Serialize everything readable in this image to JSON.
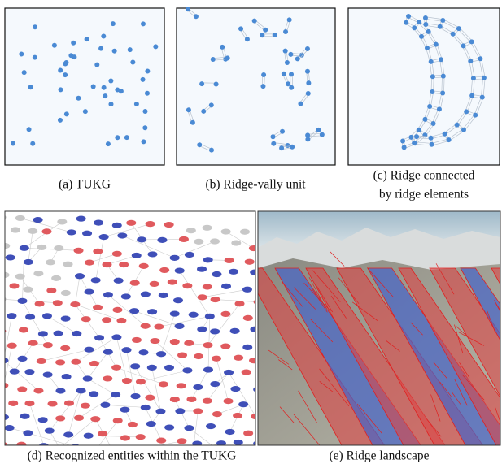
{
  "panels": [
    {
      "caption": [
        "(a) TUKG"
      ]
    },
    {
      "caption": [
        "(b) Ridge-vally unit"
      ]
    },
    {
      "caption": [
        "(c) Ridge connected",
        "by ridge elements"
      ]
    },
    {
      "caption": [
        "(d) Recognized entities within the TUKG"
      ]
    },
    {
      "caption": [
        "(e) Ridge landscape"
      ]
    }
  ]
}
